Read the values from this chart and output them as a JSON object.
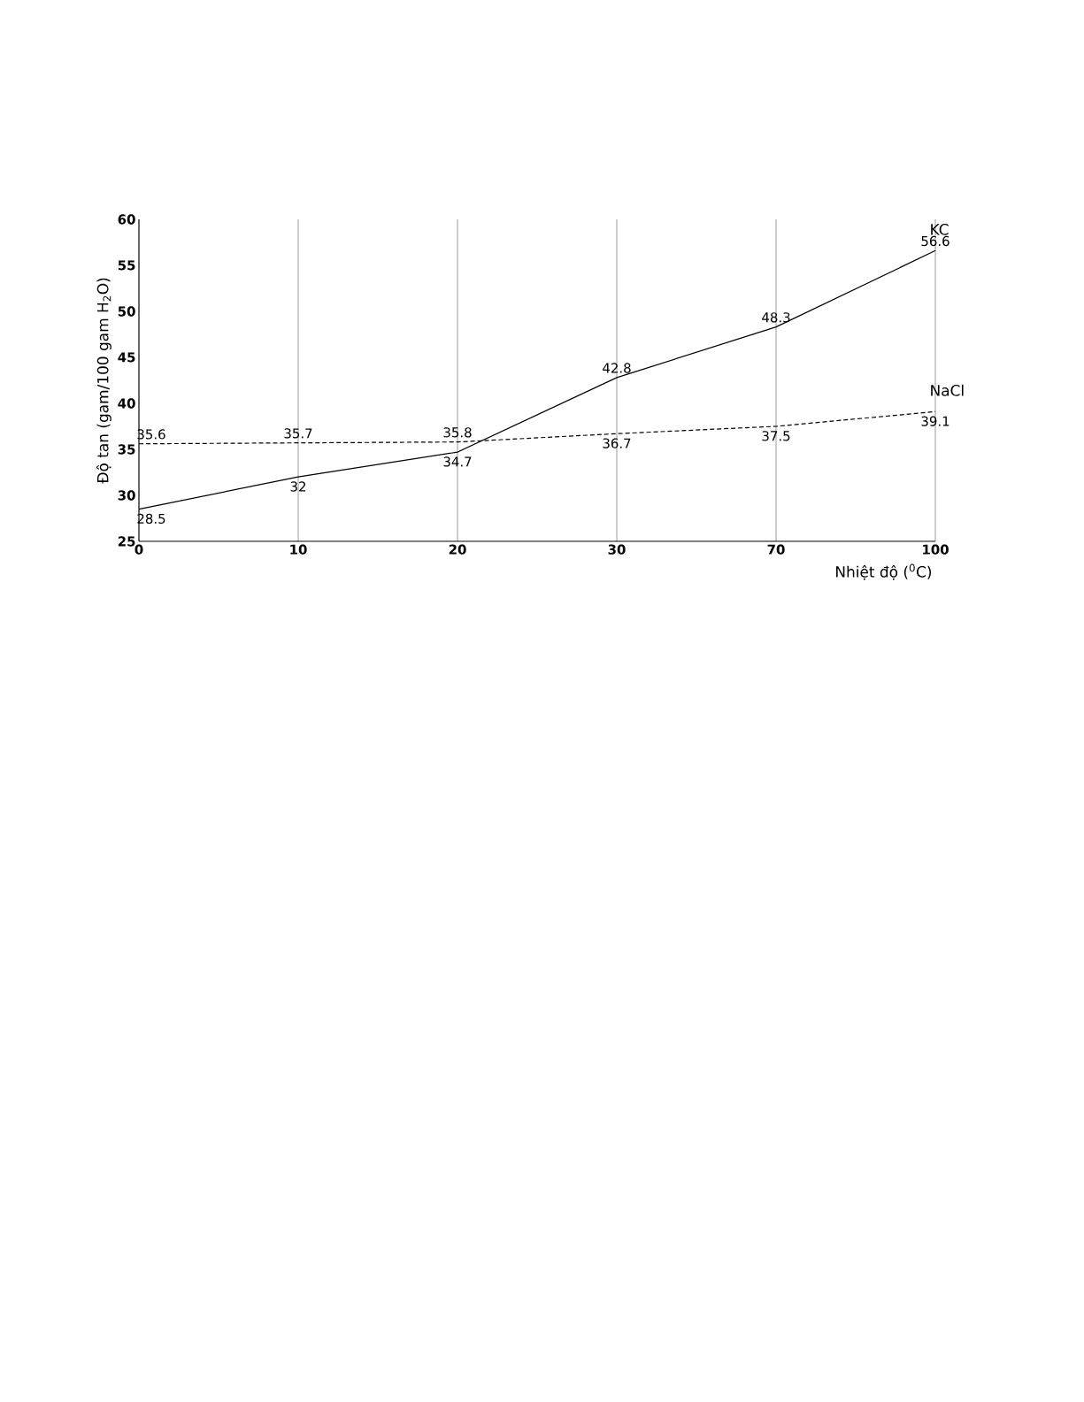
{
  "chart_data": {
    "type": "line",
    "xlabel": "Nhiệt độ ($^{0}$C)",
    "ylabel": "Độ tan (gam/100 gam H$_{2}$O)",
    "categories": [
      "0",
      "10",
      "20",
      "30",
      "70",
      "100"
    ],
    "series": [
      {
        "name": "KC",
        "color": "#000000",
        "line_style": "solid",
        "values": [
          28.5,
          32,
          34.7,
          42.8,
          48.3,
          56.6
        ]
      },
      {
        "name": "NaCl",
        "color": "#000000",
        "line_style": "dashed",
        "values": [
          35.6,
          35.7,
          35.8,
          36.7,
          37.5,
          39.1
        ]
      }
    ],
    "ylim": [
      25,
      60
    ],
    "yticks": [
      25,
      30,
      35,
      40,
      45,
      50,
      55,
      60
    ],
    "grid": "x",
    "data_labels": true,
    "marker": "none"
  }
}
